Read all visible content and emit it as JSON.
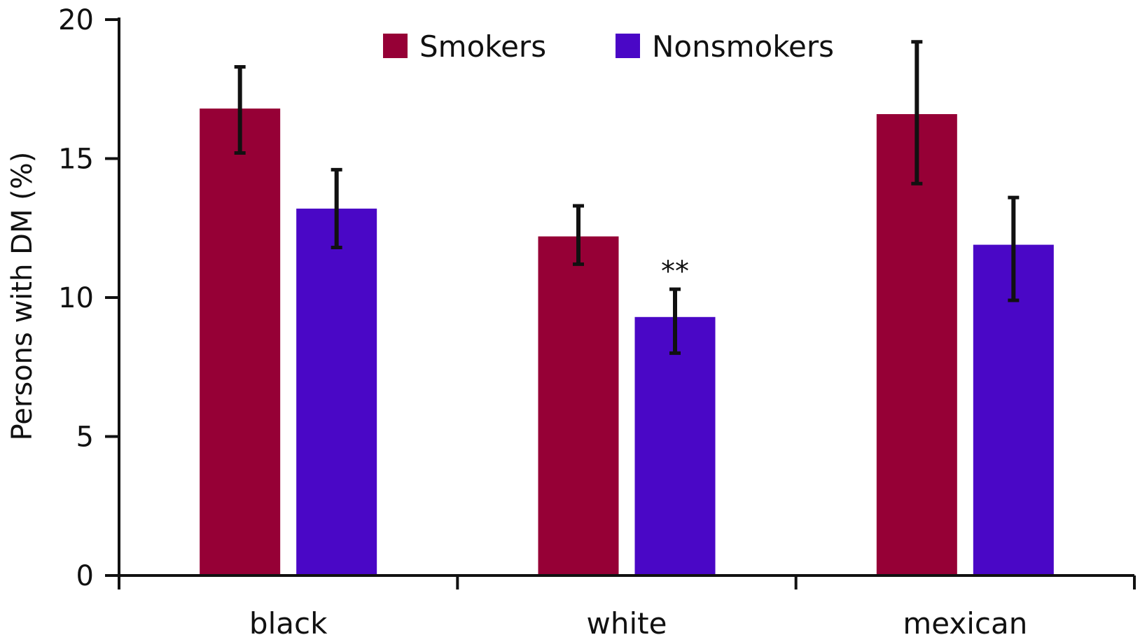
{
  "chart_data": {
    "type": "bar",
    "title": "",
    "xlabel": "",
    "ylabel": "Persons with DM (%)",
    "categories": [
      "black",
      "white",
      "mexican"
    ],
    "ylim": [
      0,
      20
    ],
    "yticks": [
      0,
      5,
      10,
      15,
      20
    ],
    "grid": false,
    "legend_position": "top-center",
    "series": [
      {
        "name": "Smokers",
        "color": "#960036",
        "values": [
          16.8,
          12.2,
          16.6
        ],
        "error_low": [
          15.2,
          11.2,
          14.1
        ],
        "error_high": [
          18.3,
          13.3,
          19.2
        ]
      },
      {
        "name": "Nonsmokers",
        "color": "#4a07c6",
        "values": [
          13.2,
          9.3,
          11.9
        ],
        "error_low": [
          11.8,
          8.0,
          9.9
        ],
        "error_high": [
          14.6,
          10.3,
          13.6
        ]
      }
    ],
    "annotations": [
      {
        "text": "**",
        "category": "white",
        "series": "Nonsmokers"
      }
    ]
  }
}
